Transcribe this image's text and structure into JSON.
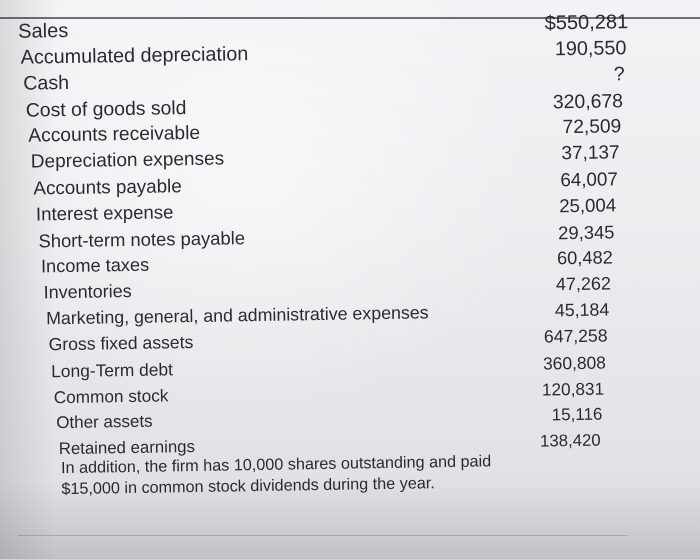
{
  "items": [
    {
      "label": "Sales",
      "value": "$550,281"
    },
    {
      "label": "Accumulated depreciation",
      "value": "190,550"
    },
    {
      "label": "Cash",
      "value": "?"
    },
    {
      "label": "Cost of goods sold",
      "value": "320,678"
    },
    {
      "label": "Accounts receivable",
      "value": "72,509"
    },
    {
      "label": "Depreciation expenses",
      "value": "37,137"
    },
    {
      "label": "Accounts payable",
      "value": "64,007"
    },
    {
      "label": "Interest expense",
      "value": "25,004"
    },
    {
      "label": "Short-term notes payable",
      "value": "29,345"
    },
    {
      "label": "Income taxes",
      "value": "60,482"
    },
    {
      "label": "Inventories",
      "value": "47,262"
    },
    {
      "label": "Marketing, general, and administrative expenses",
      "value": "45,184"
    },
    {
      "label": "Gross fixed assets",
      "value": "647,258"
    },
    {
      "label": "Long-Term debt",
      "value": "360,808"
    },
    {
      "label": "Common stock",
      "value": "120,831"
    },
    {
      "label": "Other assets",
      "value": "15,116"
    },
    {
      "label": "Retained earnings",
      "value": "138,420"
    }
  ],
  "note": {
    "line1": "In addition, the firm has 10,000 shares outstanding and paid",
    "line2": "$15,000 in common stock dividends during the year."
  }
}
